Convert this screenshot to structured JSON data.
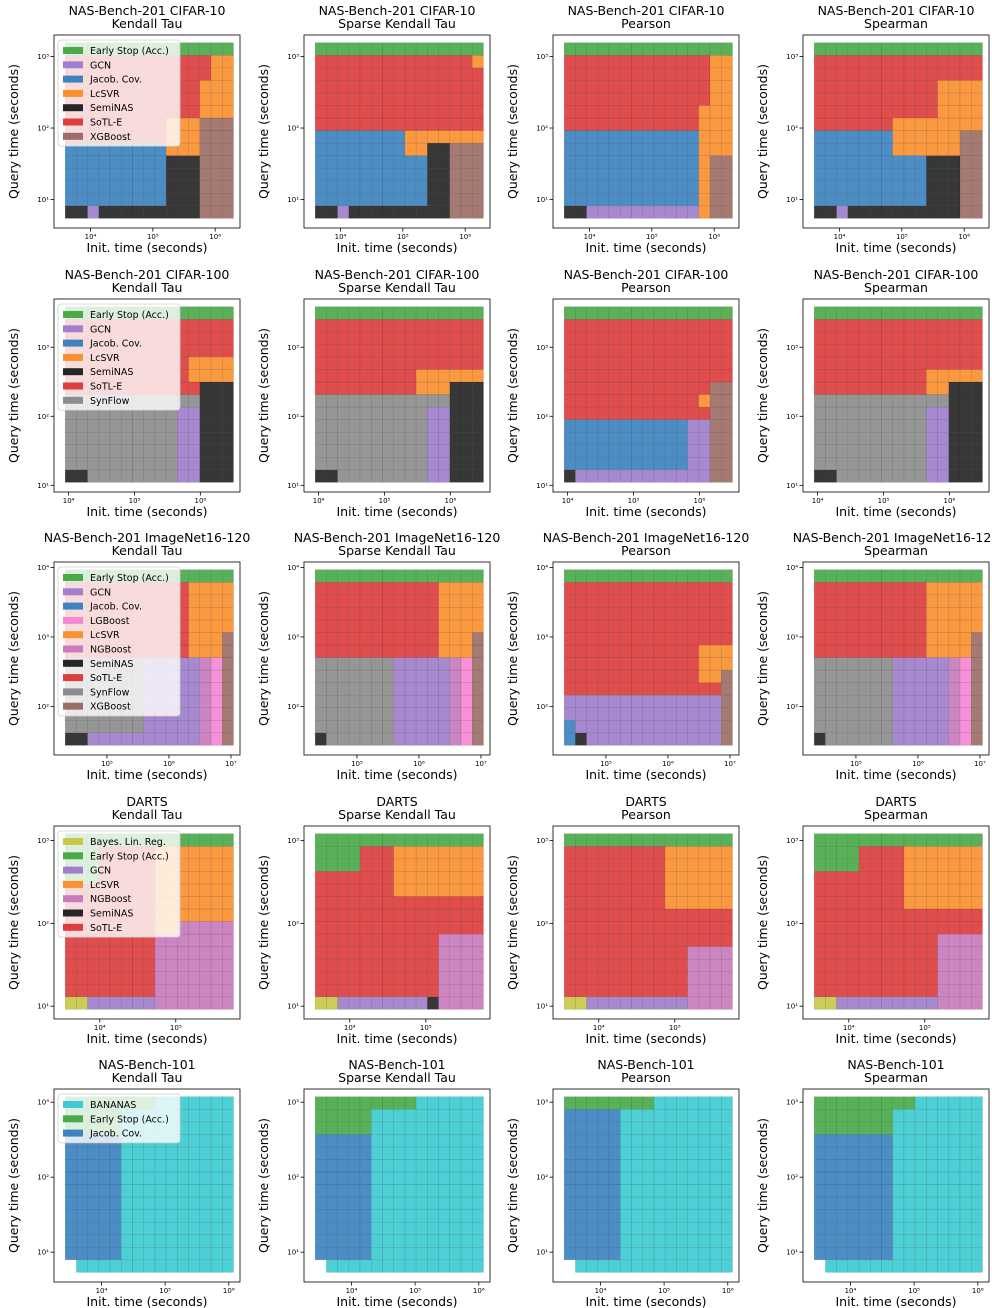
{
  "colors": {
    "Early Stop (Acc.)": "#4aaa4a",
    "GCN": "#a07fcc",
    "Jacob. Cov.": "#3e83c0",
    "LcSVR": "#fb9031",
    "SemiNAS": "#262626",
    "SoTL-E": "#dc3e3e",
    "XGBoost": "#9c6f66",
    "SynFlow": "#8d8d8d",
    "LGBoost": "#f487d6",
    "NGBoost": "#c97bbd",
    "Bayes. Lin. Reg.": "#c7c948",
    "BANANAS": "#3ecbd3"
  },
  "axis_labels": {
    "x": "Init. time (seconds)",
    "y": "Query time (seconds)"
  },
  "tick_labels": {
    "1e1": "10¹",
    "1e2": "10²",
    "1e3": "10³",
    "1e4": "10⁴",
    "1e5": "10⁵",
    "1e6": "10⁶",
    "1e7": "10⁷"
  },
  "chart_data": [
    {
      "type": "heatmap",
      "title": "NAS-Bench-201 CIFAR-10",
      "subtitle": "Kendall Tau",
      "legend": [
        "Early Stop (Acc.)",
        "GCN",
        "Jacob. Cov.",
        "LcSVR",
        "SemiNAS",
        "SoTL-E",
        "XGBoost"
      ],
      "xlim": [
        2600,
        2500000
      ],
      "ylim": [
        4,
        2000
      ],
      "xticks": [
        "1e4",
        "1e5",
        "1e6"
      ],
      "yticks": [
        "1e1",
        "1e2",
        "1e3"
      ],
      "best": {
        "ES": "Early Stop (Acc.)",
        "SoTL": "SoTL-E",
        "LcSVR": "LcSVR",
        "JC": "Jacob. Cov.",
        "Semi": "SemiNAS",
        "XGB": "XGBoost",
        "GCN": "GCN"
      }
    },
    {
      "type": "heatmap",
      "title": "NAS-Bench-201 CIFAR-10",
      "subtitle": "Sparse Kendall Tau",
      "xlim": [
        2600,
        2500000
      ],
      "ylim": [
        4,
        2000
      ],
      "xticks": [
        "1e4",
        "1e5",
        "1e6"
      ],
      "yticks": [
        "1e1",
        "1e2",
        "1e3"
      ]
    },
    {
      "type": "heatmap",
      "title": "NAS-Bench-201 CIFAR-10",
      "subtitle": "Pearson",
      "xlim": [
        2600,
        2500000
      ],
      "ylim": [
        4,
        2000
      ],
      "xticks": [
        "1e4",
        "1e5",
        "1e6"
      ],
      "yticks": [
        "1e1",
        "1e2",
        "1e3"
      ]
    },
    {
      "type": "heatmap",
      "title": "NAS-Bench-201 CIFAR-10",
      "subtitle": "Spearman",
      "xlim": [
        2600,
        2500000
      ],
      "ylim": [
        4,
        2000
      ],
      "xticks": [
        "1e4",
        "1e5",
        "1e6"
      ],
      "yticks": [
        "1e1",
        "1e2",
        "1e3"
      ]
    },
    {
      "type": "heatmap",
      "title": "NAS-Bench-201 CIFAR-100",
      "subtitle": "Kendall Tau",
      "legend": [
        "Early Stop (Acc.)",
        "GCN",
        "Jacob. Cov.",
        "LcSVR",
        "SemiNAS",
        "SoTL-E",
        "SynFlow"
      ],
      "xlim": [
        6000,
        4000000
      ],
      "ylim": [
        8,
        5000
      ],
      "xticks": [
        "1e4",
        "1e5",
        "1e6"
      ],
      "yticks": [
        "1e1",
        "1e2",
        "1e3"
      ]
    },
    {
      "type": "heatmap",
      "title": "NAS-Bench-201 CIFAR-100",
      "subtitle": "Sparse Kendall Tau",
      "xlim": [
        6000,
        4000000
      ],
      "ylim": [
        8,
        5000
      ],
      "xticks": [
        "1e4",
        "1e5",
        "1e6"
      ],
      "yticks": [
        "1e1",
        "1e2",
        "1e3"
      ]
    },
    {
      "type": "heatmap",
      "title": "NAS-Bench-201 CIFAR-100",
      "subtitle": "Pearson",
      "xlim": [
        6000,
        4000000
      ],
      "ylim": [
        8,
        5000
      ],
      "xticks": [
        "1e4",
        "1e5",
        "1e6"
      ],
      "yticks": [
        "1e1",
        "1e2",
        "1e3"
      ]
    },
    {
      "type": "heatmap",
      "title": "NAS-Bench-201 CIFAR-100",
      "subtitle": "Spearman",
      "xlim": [
        6000,
        4000000
      ],
      "ylim": [
        8,
        5000
      ],
      "xticks": [
        "1e4",
        "1e5",
        "1e6"
      ],
      "yticks": [
        "1e1",
        "1e2",
        "1e3"
      ]
    },
    {
      "type": "heatmap",
      "title": "NAS-Bench-201 ImageNet16-120",
      "subtitle": "Kendall Tau",
      "legend": [
        "Early Stop (Acc.)",
        "GCN",
        "Jacob. Cov.",
        "LGBoost",
        "LcSVR",
        "NGBoost",
        "SemiNAS",
        "SoTL-E",
        "SynFlow",
        "XGBoost"
      ],
      "xlim": [
        14000,
        14000000
      ],
      "ylim": [
        20,
        12000
      ],
      "xticks": [
        "1e5",
        "1e6",
        "1e7"
      ],
      "yticks": [
        "1e2",
        "1e3",
        "1e4"
      ]
    },
    {
      "type": "heatmap",
      "title": "NAS-Bench-201 ImageNet16-120",
      "subtitle": "Sparse Kendall Tau",
      "xlim": [
        14000,
        14000000
      ],
      "ylim": [
        20,
        12000
      ],
      "xticks": [
        "1e5",
        "1e6",
        "1e7"
      ],
      "yticks": [
        "1e2",
        "1e3",
        "1e4"
      ]
    },
    {
      "type": "heatmap",
      "title": "NAS-Bench-201 ImageNet16-120",
      "subtitle": "Pearson",
      "xlim": [
        14000,
        14000000
      ],
      "ylim": [
        20,
        12000
      ],
      "xticks": [
        "1e5",
        "1e6",
        "1e7"
      ],
      "yticks": [
        "1e2",
        "1e3",
        "1e4"
      ]
    },
    {
      "type": "heatmap",
      "title": "NAS-Bench-201 ImageNet16-120",
      "subtitle": "Spearman",
      "xlim": [
        14000,
        14000000
      ],
      "ylim": [
        20,
        12000
      ],
      "xticks": [
        "1e5",
        "1e6",
        "1e7"
      ],
      "yticks": [
        "1e2",
        "1e3",
        "1e4"
      ]
    },
    {
      "type": "heatmap",
      "title": "DARTS",
      "subtitle": "Kendall Tau",
      "legend": [
        "Bayes. Lin. Reg.",
        "Early Stop (Acc.)",
        "GCN",
        "LcSVR",
        "NGBoost",
        "SemiNAS",
        "SoTL-E"
      ],
      "xlim": [
        2500,
        700000
      ],
      "ylim": [
        7,
        1500
      ],
      "xticks": [
        "1e4",
        "1e5"
      ],
      "yticks": [
        "1e1",
        "1e2",
        "1e3"
      ]
    },
    {
      "type": "heatmap",
      "title": "DARTS",
      "subtitle": "Sparse Kendall Tau",
      "xlim": [
        2500,
        700000
      ],
      "ylim": [
        7,
        1500
      ],
      "xticks": [
        "1e4",
        "1e5"
      ],
      "yticks": [
        "1e1",
        "1e2",
        "1e3"
      ]
    },
    {
      "type": "heatmap",
      "title": "DARTS",
      "subtitle": "Pearson",
      "xlim": [
        2500,
        700000
      ],
      "ylim": [
        7,
        1500
      ],
      "xticks": [
        "1e4",
        "1e5"
      ],
      "yticks": [
        "1e1",
        "1e2",
        "1e3"
      ]
    },
    {
      "type": "heatmap",
      "title": "DARTS",
      "subtitle": "Spearman",
      "xlim": [
        2500,
        700000
      ],
      "ylim": [
        7,
        1500
      ],
      "xticks": [
        "1e4",
        "1e5"
      ],
      "yticks": [
        "1e1",
        "1e2",
        "1e3"
      ]
    },
    {
      "type": "heatmap",
      "title": "NAS-Bench-101",
      "subtitle": "Kendall Tau",
      "legend": [
        "BANANAS",
        "Early Stop (Acc.)",
        "Jacob. Cov."
      ],
      "xlim": [
        1800,
        1500000
      ],
      "ylim": [
        4,
        1500
      ],
      "xticks": [
        "1e4",
        "1e5",
        "1e6"
      ],
      "yticks": [
        "1e1",
        "1e2",
        "1e3"
      ]
    },
    {
      "type": "heatmap",
      "title": "NAS-Bench-101",
      "subtitle": "Sparse Kendall Tau",
      "xlim": [
        1800,
        1500000
      ],
      "ylim": [
        4,
        1500
      ],
      "xticks": [
        "1e4",
        "1e5",
        "1e6"
      ],
      "yticks": [
        "1e1",
        "1e2",
        "1e3"
      ]
    },
    {
      "type": "heatmap",
      "title": "NAS-Bench-101",
      "subtitle": "Pearson",
      "xlim": [
        1800,
        1500000
      ],
      "ylim": [
        4,
        1500
      ],
      "xticks": [
        "1e4",
        "1e5",
        "1e6"
      ],
      "yticks": [
        "1e1",
        "1e2",
        "1e3"
      ]
    },
    {
      "type": "heatmap",
      "title": "NAS-Bench-101",
      "subtitle": "Spearman",
      "xlim": [
        1800,
        1500000
      ],
      "ylim": [
        4,
        1500
      ],
      "xticks": [
        "1e4",
        "1e5",
        "1e6"
      ],
      "yticks": [
        "1e1",
        "1e2",
        "1e3"
      ]
    }
  ]
}
